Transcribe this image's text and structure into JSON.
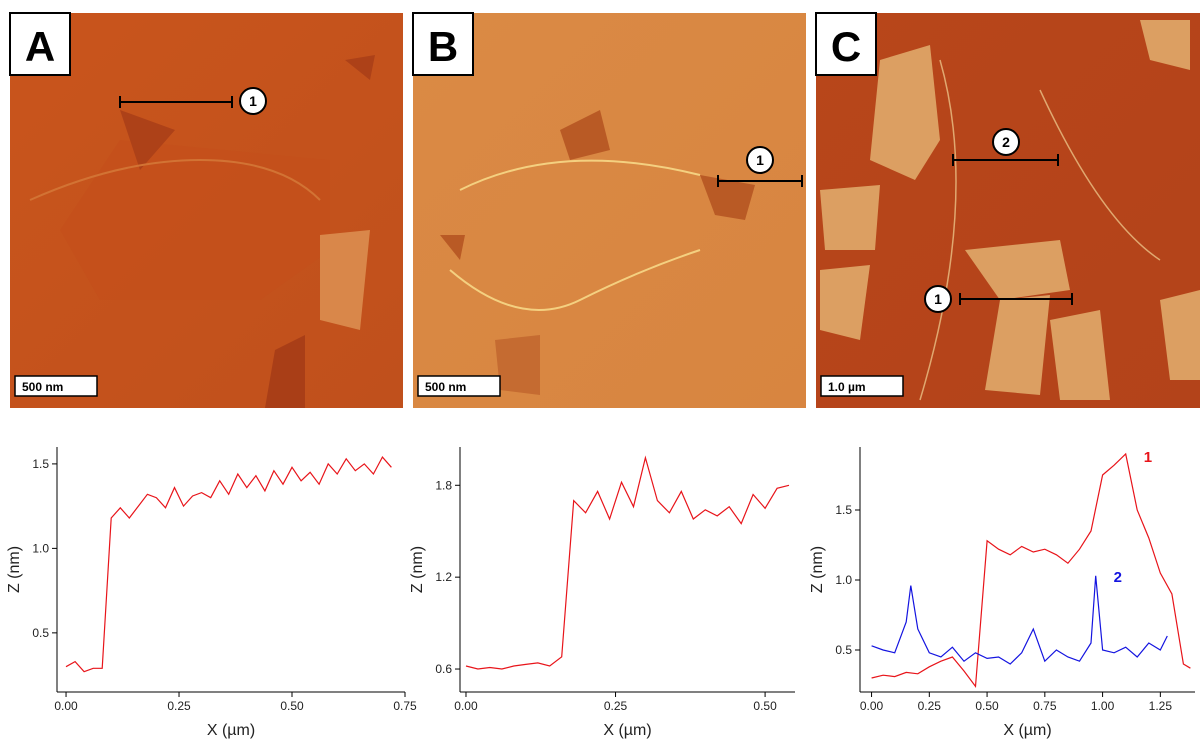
{
  "images": [
    {
      "label": "A",
      "scale_bar": "500 nm",
      "markers": [
        "1"
      ]
    },
    {
      "label": "B",
      "scale_bar": "500 nm",
      "markers": [
        "1"
      ]
    },
    {
      "label": "C",
      "scale_bar": "1.0 µm",
      "markers": [
        "2",
        "1"
      ]
    }
  ],
  "chart_data": [
    {
      "type": "line",
      "x_label": "X (µm)",
      "y_label": "Z (nm)",
      "color": "#e8141a",
      "x": [
        0,
        0.02,
        0.04,
        0.06,
        0.08,
        0.1,
        0.12,
        0.14,
        0.16,
        0.18,
        0.2,
        0.22,
        0.24,
        0.26,
        0.28,
        0.3,
        0.32,
        0.34,
        0.36,
        0.38,
        0.4,
        0.42,
        0.44,
        0.46,
        0.48,
        0.5,
        0.52,
        0.54,
        0.56,
        0.58,
        0.6,
        0.62,
        0.64,
        0.66,
        0.68,
        0.7,
        0.72
      ],
      "values": [
        0.3,
        0.33,
        0.27,
        0.29,
        0.29,
        1.18,
        1.24,
        1.18,
        1.25,
        1.32,
        1.3,
        1.24,
        1.36,
        1.25,
        1.31,
        1.33,
        1.3,
        1.4,
        1.32,
        1.44,
        1.36,
        1.43,
        1.34,
        1.46,
        1.38,
        1.48,
        1.4,
        1.45,
        1.38,
        1.5,
        1.44,
        1.53,
        1.46,
        1.5,
        1.44,
        1.54,
        1.48
      ],
      "xlim": [
        -0.02,
        0.75
      ],
      "ylim": [
        0.15,
        1.6
      ],
      "xticks": [
        {
          "value": 0,
          "label": "0.00"
        },
        0.25,
        {
          "value": 0.5,
          "label": "0.50"
        },
        0.75
      ],
      "yticks": [
        0.5,
        {
          "value": 1,
          "label": "1.0"
        },
        1.5
      ]
    },
    {
      "type": "line",
      "x_label": "X (µm)",
      "y_label": "Z (nm)",
      "color": "#e8141a",
      "x": [
        0,
        0.02,
        0.04,
        0.06,
        0.08,
        0.1,
        0.12,
        0.14,
        0.16,
        0.18,
        0.2,
        0.22,
        0.24,
        0.26,
        0.28,
        0.3,
        0.32,
        0.34,
        0.36,
        0.38,
        0.4,
        0.42,
        0.44,
        0.46,
        0.48,
        0.5,
        0.52,
        0.54
      ],
      "values": [
        0.62,
        0.6,
        0.61,
        0.6,
        0.62,
        0.63,
        0.64,
        0.62,
        0.68,
        1.7,
        1.62,
        1.76,
        1.58,
        1.82,
        1.66,
        1.98,
        1.7,
        1.62,
        1.76,
        1.58,
        1.64,
        1.6,
        1.66,
        1.55,
        1.74,
        1.65,
        1.78,
        1.8
      ],
      "xlim": [
        -0.01,
        0.55
      ],
      "ylim": [
        0.45,
        2.05
      ],
      "xticks": [
        {
          "value": 0,
          "label": "0.00"
        },
        0.25,
        {
          "value": 0.5,
          "label": "0.50"
        }
      ],
      "yticks": [
        0.6,
        1.2,
        1.8
      ]
    },
    {
      "type": "line",
      "x_label": "X (µm)",
      "y_label": "Z (nm)",
      "series": [
        {
          "name": "1",
          "color": "#e8141a",
          "x": [
            0,
            0.05,
            0.1,
            0.15,
            0.2,
            0.25,
            0.3,
            0.35,
            0.4,
            0.45,
            0.5,
            0.55,
            0.6,
            0.65,
            0.7,
            0.75,
            0.8,
            0.85,
            0.9,
            0.95,
            1,
            1.05,
            1.1,
            1.15,
            1.2,
            1.25,
            1.3,
            1.35,
            1.38
          ],
          "values": [
            0.3,
            0.32,
            0.31,
            0.34,
            0.33,
            0.38,
            0.42,
            0.45,
            0.35,
            0.24,
            1.28,
            1.22,
            1.18,
            1.24,
            1.2,
            1.22,
            1.18,
            1.12,
            1.22,
            1.35,
            1.75,
            1.82,
            1.9,
            1.5,
            1.3,
            1.05,
            0.9,
            0.4,
            0.37
          ]
        },
        {
          "name": "2",
          "color": "#1414e0",
          "x": [
            0,
            0.05,
            0.1,
            0.15,
            0.17,
            0.2,
            0.25,
            0.3,
            0.35,
            0.4,
            0.45,
            0.5,
            0.55,
            0.6,
            0.65,
            0.7,
            0.75,
            0.8,
            0.85,
            0.9,
            0.95,
            0.97,
            1,
            1.05,
            1.1,
            1.15,
            1.2,
            1.25,
            1.28
          ],
          "values": [
            0.53,
            0.5,
            0.48,
            0.7,
            0.96,
            0.65,
            0.48,
            0.45,
            0.52,
            0.42,
            0.48,
            0.44,
            0.45,
            0.4,
            0.48,
            0.65,
            0.42,
            0.5,
            0.45,
            0.42,
            0.55,
            1.03,
            0.5,
            0.48,
            0.52,
            0.45,
            0.55,
            0.5,
            0.6
          ]
        }
      ],
      "xlim": [
        -0.05,
        1.4
      ],
      "ylim": [
        0.2,
        1.95
      ],
      "xticks": [
        {
          "value": 0,
          "label": "0.00"
        },
        0.25,
        {
          "value": 0.5,
          "label": "0.50"
        },
        0.75,
        {
          "value": 1,
          "label": "1.00"
        },
        1.25
      ],
      "yticks": [
        0.5,
        {
          "value": 1,
          "label": "1.0"
        },
        1.5
      ]
    }
  ]
}
